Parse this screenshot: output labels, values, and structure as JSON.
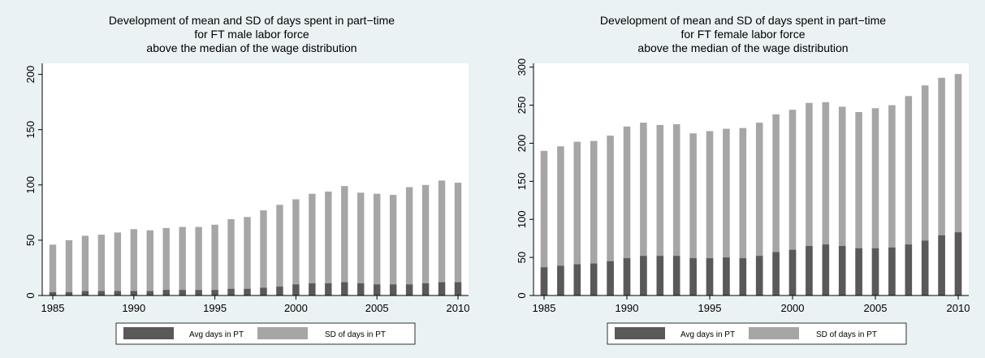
{
  "colors": {
    "outer_background": "#eaf2f3",
    "plot_background": "#ffffff",
    "avg_bar": "#595959",
    "sd_bar": "#a6a6a6",
    "axis": "#000000"
  },
  "chart_data": [
    {
      "type": "bar",
      "title": [
        "Development of mean and SD of days spent in part−time",
        "for FT male labor force",
        "above the median of the wage distribution"
      ],
      "xlabel": "",
      "ylabel": "",
      "x": [
        1985,
        1986,
        1987,
        1988,
        1989,
        1990,
        1991,
        1992,
        1993,
        1994,
        1995,
        1996,
        1997,
        1998,
        1999,
        2000,
        2001,
        2002,
        2003,
        2004,
        2005,
        2006,
        2007,
        2008,
        2009,
        2010
      ],
      "xticks": [
        1985,
        1990,
        1995,
        2000,
        2005,
        2010
      ],
      "ylim": [
        0,
        210
      ],
      "yticks": [
        0,
        50,
        100,
        150,
        200
      ],
      "grid": false,
      "legend_position": "bottom",
      "series": [
        {
          "name": "Avg days in PT",
          "color": "#595959",
          "values": [
            3,
            3,
            4,
            4,
            4,
            4,
            4,
            5,
            5,
            5,
            5,
            6,
            6,
            7,
            8,
            10,
            11,
            11,
            12,
            11,
            10,
            10,
            10,
            11,
            12,
            12
          ]
        },
        {
          "name": "SD of days in PT",
          "color": "#a6a6a6",
          "values": [
            46,
            50,
            54,
            55,
            57,
            60,
            59,
            61,
            62,
            62,
            64,
            69,
            71,
            77,
            82,
            87,
            92,
            94,
            99,
            93,
            92,
            91,
            98,
            100,
            104,
            102
          ]
        }
      ]
    },
    {
      "type": "bar",
      "title": [
        "Development of mean and SD of days spent in part−time",
        "for FT female labor force",
        "above the median of the wage distribution"
      ],
      "xlabel": "",
      "ylabel": "",
      "x": [
        1985,
        1986,
        1987,
        1988,
        1989,
        1990,
        1991,
        1992,
        1993,
        1994,
        1995,
        1996,
        1997,
        1998,
        1999,
        2000,
        2001,
        2002,
        2003,
        2004,
        2005,
        2006,
        2007,
        2008,
        2009,
        2010
      ],
      "xticks": [
        1985,
        1990,
        1995,
        2000,
        2005,
        2010
      ],
      "ylim": [
        0,
        305
      ],
      "yticks": [
        0,
        50,
        100,
        150,
        200,
        250,
        300
      ],
      "grid": false,
      "legend_position": "bottom",
      "series": [
        {
          "name": "Avg days in PT",
          "color": "#595959",
          "values": [
            37,
            39,
            41,
            42,
            45,
            49,
            52,
            52,
            52,
            49,
            49,
            50,
            49,
            52,
            57,
            60,
            65,
            67,
            65,
            62,
            62,
            63,
            67,
            72,
            79,
            83
          ]
        },
        {
          "name": "SD of days in PT",
          "color": "#a6a6a6",
          "values": [
            190,
            196,
            202,
            203,
            210,
            222,
            227,
            224,
            225,
            213,
            216,
            219,
            220,
            227,
            238,
            244,
            253,
            254,
            248,
            241,
            246,
            250,
            262,
            276,
            286,
            291
          ]
        }
      ]
    }
  ]
}
